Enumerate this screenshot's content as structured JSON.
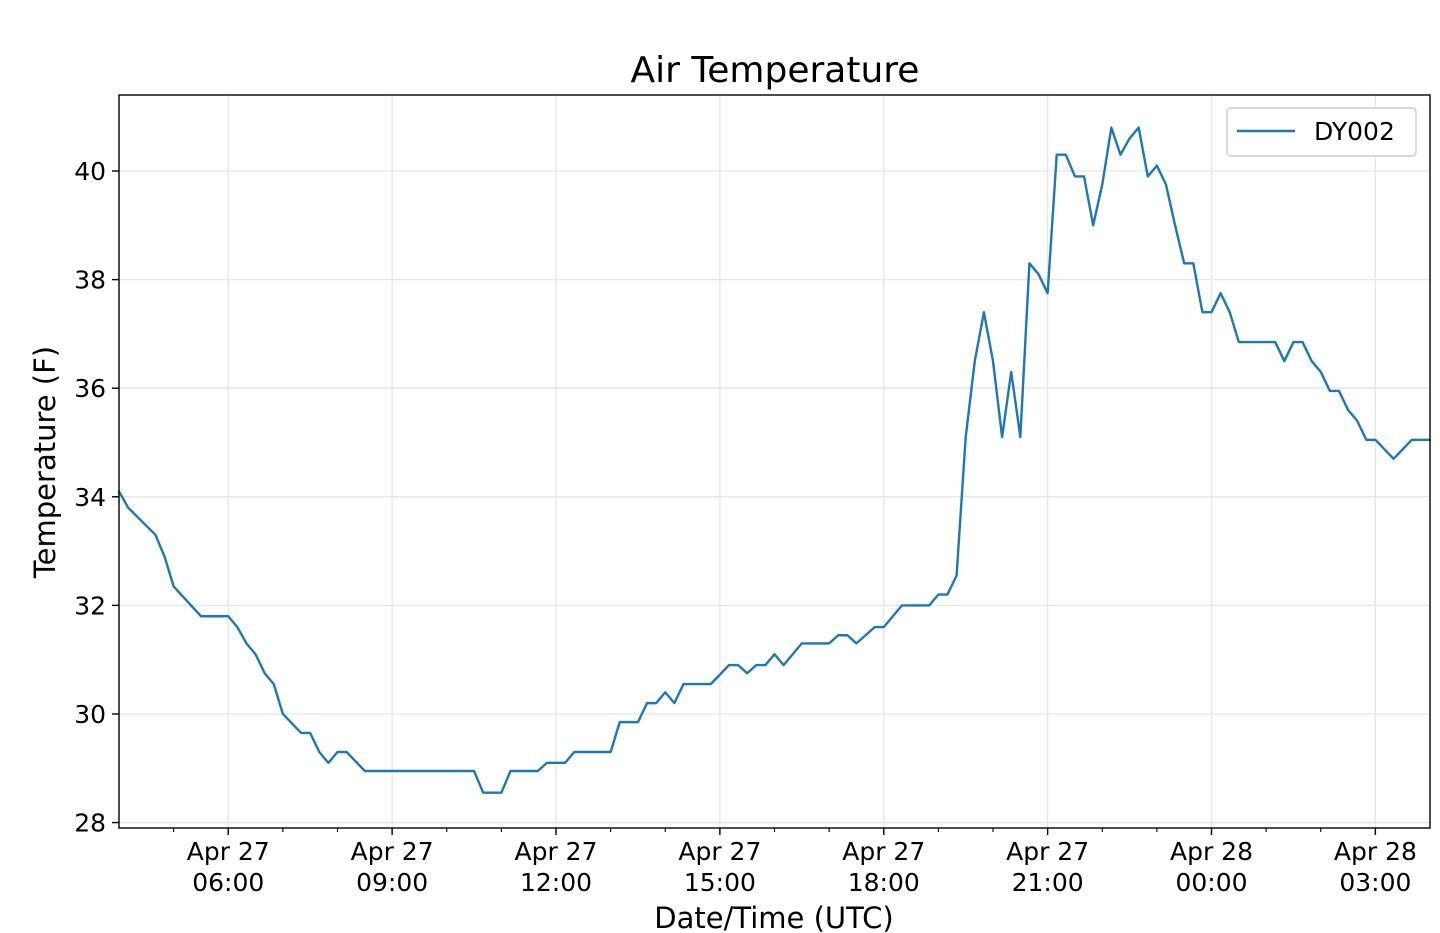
{
  "chart_data": {
    "type": "line",
    "title": "Air Temperature",
    "xlabel": "Date/Time (UTC)",
    "ylabel": "Temperature (F)",
    "timezone": "UTC",
    "xlim": [
      "2020-04-27 04:00",
      "2020-04-28 04:00"
    ],
    "ylim": [
      27.9,
      41.4
    ],
    "grid": true,
    "legend_position": "top-right",
    "colors": {
      "line": "#1f77b4",
      "grid": "#e5e5e5",
      "axes": "#000000"
    },
    "x_ticks": [
      {
        "x": "2020-04-27 06:00",
        "line1": "Apr 27",
        "line2": "06:00"
      },
      {
        "x": "2020-04-27 09:00",
        "line1": "Apr 27",
        "line2": "09:00"
      },
      {
        "x": "2020-04-27 12:00",
        "line1": "Apr 27",
        "line2": "12:00"
      },
      {
        "x": "2020-04-27 15:00",
        "line1": "Apr 27",
        "line2": "15:00"
      },
      {
        "x": "2020-04-27 18:00",
        "line1": "Apr 27",
        "line2": "18:00"
      },
      {
        "x": "2020-04-27 21:00",
        "line1": "Apr 27",
        "line2": "21:00"
      },
      {
        "x": "2020-04-28 00:00",
        "line1": "Apr 28",
        "line2": "00:00"
      },
      {
        "x": "2020-04-28 03:00",
        "line1": "Apr 28",
        "line2": "03:00"
      }
    ],
    "x_minor_ticks": [
      "2020-04-27 05:00",
      "2020-04-27 07:00",
      "2020-04-27 08:00",
      "2020-04-27 10:00",
      "2020-04-27 11:00",
      "2020-04-27 13:00",
      "2020-04-27 14:00",
      "2020-04-27 16:00",
      "2020-04-27 17:00",
      "2020-04-27 19:00",
      "2020-04-27 20:00",
      "2020-04-27 22:00",
      "2020-04-27 23:00",
      "2020-04-28 01:00",
      "2020-04-28 02:00"
    ],
    "y_ticks": [
      28,
      30,
      32,
      34,
      36,
      38,
      40
    ],
    "series": [
      {
        "name": "DY002",
        "color": "#1f77b4",
        "points": [
          [
            "2020-04-27 04:00",
            34.1
          ],
          [
            "2020-04-27 04:10",
            33.8
          ],
          [
            "2020-04-27 04:40",
            33.3
          ],
          [
            "2020-04-27 04:50",
            32.9
          ],
          [
            "2020-04-27 05:00",
            32.35
          ],
          [
            "2020-04-27 05:30",
            31.8
          ],
          [
            "2020-04-27 06:00",
            31.8
          ],
          [
            "2020-04-27 06:10",
            31.6
          ],
          [
            "2020-04-27 06:20",
            31.3
          ],
          [
            "2020-04-27 06:30",
            31.1
          ],
          [
            "2020-04-27 06:40",
            30.75
          ],
          [
            "2020-04-27 06:50",
            30.55
          ],
          [
            "2020-04-27 07:00",
            30.0
          ],
          [
            "2020-04-27 07:20",
            29.65
          ],
          [
            "2020-04-27 07:30",
            29.65
          ],
          [
            "2020-04-27 07:40",
            29.3
          ],
          [
            "2020-04-27 07:50",
            29.1
          ],
          [
            "2020-04-27 08:00",
            29.3
          ],
          [
            "2020-04-27 08:10",
            29.3
          ],
          [
            "2020-04-27 08:30",
            28.95
          ],
          [
            "2020-04-27 10:30",
            28.95
          ],
          [
            "2020-04-27 10:40",
            28.55
          ],
          [
            "2020-04-27 11:00",
            28.55
          ],
          [
            "2020-04-27 11:10",
            28.95
          ],
          [
            "2020-04-27 11:40",
            28.95
          ],
          [
            "2020-04-27 11:50",
            29.1
          ],
          [
            "2020-04-27 12:10",
            29.1
          ],
          [
            "2020-04-27 12:20",
            29.3
          ],
          [
            "2020-04-27 13:00",
            29.3
          ],
          [
            "2020-04-27 13:10",
            29.85
          ],
          [
            "2020-04-27 13:30",
            29.85
          ],
          [
            "2020-04-27 13:40",
            30.2
          ],
          [
            "2020-04-27 13:50",
            30.2
          ],
          [
            "2020-04-27 14:00",
            30.4
          ],
          [
            "2020-04-27 14:10",
            30.2
          ],
          [
            "2020-04-27 14:20",
            30.55
          ],
          [
            "2020-04-27 14:50",
            30.55
          ],
          [
            "2020-04-27 15:10",
            30.9
          ],
          [
            "2020-04-27 15:20",
            30.9
          ],
          [
            "2020-04-27 15:30",
            30.75
          ],
          [
            "2020-04-27 15:40",
            30.9
          ],
          [
            "2020-04-27 15:50",
            30.9
          ],
          [
            "2020-04-27 16:00",
            31.1
          ],
          [
            "2020-04-27 16:10",
            30.9
          ],
          [
            "2020-04-27 16:30",
            31.3
          ],
          [
            "2020-04-27 17:00",
            31.3
          ],
          [
            "2020-04-27 17:10",
            31.45
          ],
          [
            "2020-04-27 17:20",
            31.45
          ],
          [
            "2020-04-27 17:30",
            31.3
          ],
          [
            "2020-04-27 17:50",
            31.6
          ],
          [
            "2020-04-27 18:00",
            31.6
          ],
          [
            "2020-04-27 18:20",
            32.0
          ],
          [
            "2020-04-27 18:50",
            32.0
          ],
          [
            "2020-04-27 19:00",
            32.2
          ],
          [
            "2020-04-27 19:10",
            32.2
          ],
          [
            "2020-04-27 19:20",
            32.55
          ],
          [
            "2020-04-27 19:30",
            35.1
          ],
          [
            "2020-04-27 19:40",
            36.5
          ],
          [
            "2020-04-27 19:50",
            37.4
          ],
          [
            "2020-04-27 20:00",
            36.5
          ],
          [
            "2020-04-27 20:10",
            35.1
          ],
          [
            "2020-04-27 20:20",
            36.3
          ],
          [
            "2020-04-27 20:30",
            35.1
          ],
          [
            "2020-04-27 20:40",
            38.3
          ],
          [
            "2020-04-27 20:50",
            38.1
          ],
          [
            "2020-04-27 21:00",
            37.75
          ],
          [
            "2020-04-27 21:10",
            40.3
          ],
          [
            "2020-04-27 21:20",
            40.3
          ],
          [
            "2020-04-27 21:30",
            39.9
          ],
          [
            "2020-04-27 21:40",
            39.9
          ],
          [
            "2020-04-27 21:50",
            39.0
          ],
          [
            "2020-04-27 22:00",
            39.75
          ],
          [
            "2020-04-27 22:10",
            40.8
          ],
          [
            "2020-04-27 22:20",
            40.3
          ],
          [
            "2020-04-27 22:30",
            40.6
          ],
          [
            "2020-04-27 22:40",
            40.8
          ],
          [
            "2020-04-27 22:50",
            39.9
          ],
          [
            "2020-04-27 23:00",
            40.1
          ],
          [
            "2020-04-27 23:10",
            39.75
          ],
          [
            "2020-04-27 23:20",
            39.0
          ],
          [
            "2020-04-27 23:30",
            38.3
          ],
          [
            "2020-04-27 23:40",
            38.3
          ],
          [
            "2020-04-27 23:50",
            37.4
          ],
          [
            "2020-04-28 00:00",
            37.4
          ],
          [
            "2020-04-28 00:10",
            37.75
          ],
          [
            "2020-04-28 00:20",
            37.4
          ],
          [
            "2020-04-28 00:30",
            36.85
          ],
          [
            "2020-04-28 01:10",
            36.85
          ],
          [
            "2020-04-28 01:20",
            36.5
          ],
          [
            "2020-04-28 01:30",
            36.85
          ],
          [
            "2020-04-28 01:40",
            36.85
          ],
          [
            "2020-04-28 01:50",
            36.5
          ],
          [
            "2020-04-28 02:00",
            36.3
          ],
          [
            "2020-04-28 02:10",
            35.95
          ],
          [
            "2020-04-28 02:20",
            35.95
          ],
          [
            "2020-04-28 02:30",
            35.6
          ],
          [
            "2020-04-28 02:40",
            35.4
          ],
          [
            "2020-04-28 02:50",
            35.05
          ],
          [
            "2020-04-28 03:00",
            35.05
          ],
          [
            "2020-04-28 03:20",
            34.7
          ],
          [
            "2020-04-28 03:40",
            35.05
          ],
          [
            "2020-04-28 04:00",
            35.05
          ]
        ]
      }
    ]
  }
}
